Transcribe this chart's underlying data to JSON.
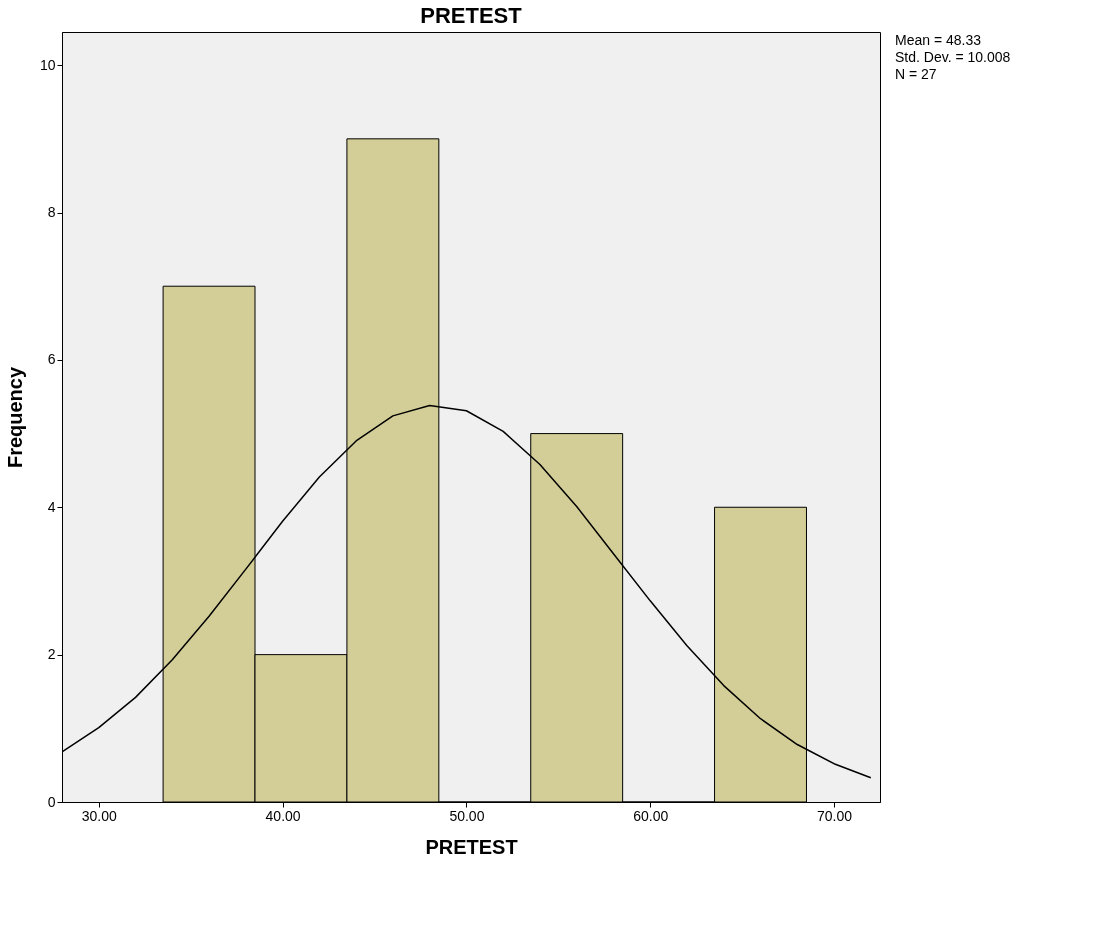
{
  "chart_data": {
    "type": "histogram",
    "title": "PRETEST",
    "xlabel": "PRETEST",
    "ylabel": "Frequency",
    "bins": [
      33.5,
      38.5,
      43.5,
      48.5,
      53.5,
      58.5,
      63.5,
      68.5
    ],
    "values": [
      7,
      2,
      9,
      0,
      5,
      0,
      4
    ],
    "color": "#d3ce97",
    "series": [
      {
        "type": "line",
        "color": "#000000",
        "x": [
          28,
          30,
          32,
          34,
          36,
          38,
          40,
          42,
          44,
          46,
          48,
          50,
          52,
          54,
          56,
          58,
          60,
          62,
          64,
          66,
          68,
          70,
          72
        ],
        "values": [
          0.68,
          1.01,
          1.42,
          1.93,
          2.52,
          3.16,
          3.81,
          4.41,
          4.9,
          5.24,
          5.38,
          5.31,
          5.03,
          4.58,
          4.01,
          3.37,
          2.73,
          2.12,
          1.58,
          1.13,
          0.78,
          0.52,
          0.33
        ]
      }
    ],
    "xlim": [
      28,
      72.5
    ],
    "ylim": [
      0,
      10.45
    ],
    "xticks": [
      {
        "value": 30,
        "label": "30.00"
      },
      {
        "value": 40,
        "label": "40.00"
      },
      {
        "value": 50,
        "label": "50.00"
      },
      {
        "value": 60,
        "label": "60.00"
      },
      {
        "value": 70,
        "label": "70.00"
      }
    ],
    "yticks": [
      0,
      2,
      4,
      6,
      8,
      10
    ],
    "grid": false,
    "annotations": [
      "Mean = 48.33",
      "Std. Dev. = 10.008",
      "N = 27"
    ]
  }
}
